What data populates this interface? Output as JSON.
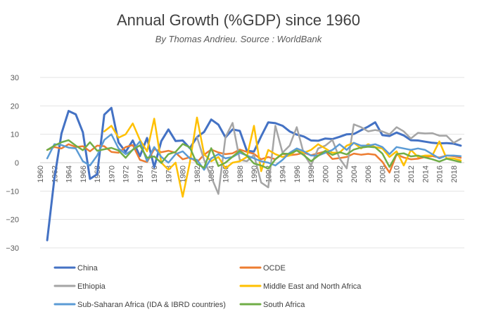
{
  "chart_data": {
    "type": "line",
    "title": "Annual Growth (%GDP) since 1960",
    "subtitle": "By Thomas Andrieu. Source : WorldBank",
    "xlabel": "",
    "ylabel": "",
    "ylim": [
      -30,
      30
    ],
    "yticks": [
      30,
      20,
      10,
      0,
      -10,
      -20,
      -30
    ],
    "xticks": [
      1960,
      1962,
      1964,
      1966,
      1968,
      1970,
      1972,
      1974,
      1976,
      1978,
      1980,
      1982,
      1984,
      1986,
      1988,
      1990,
      1992,
      1994,
      1996,
      1998,
      2000,
      2002,
      2004,
      2006,
      2008,
      2010,
      2012,
      2014,
      2016,
      2018
    ],
    "grid": true,
    "legend_position": "bottom",
    "series": [
      {
        "name": "China",
        "color": "#4472C4",
        "x": [
          1961,
          1962,
          1963,
          1964,
          1965,
          1966,
          1967,
          1968,
          1969,
          1970,
          1971,
          1972,
          1973,
          1974,
          1975,
          1976,
          1977,
          1978,
          1979,
          1980,
          1981,
          1982,
          1983,
          1984,
          1985,
          1986,
          1987,
          1988,
          1989,
          1990,
          1991,
          1992,
          1993,
          1994,
          1995,
          1996,
          1997,
          1998,
          1999,
          2000,
          2001,
          2002,
          2003,
          2004,
          2005,
          2006,
          2007,
          2008,
          2009,
          2010,
          2011,
          2012,
          2013,
          2014,
          2015,
          2016,
          2017,
          2018,
          2019
        ],
        "y": [
          -27.3,
          -5.6,
          10.3,
          18.2,
          17.0,
          10.7,
          -5.7,
          -4.1,
          16.9,
          19.3,
          7.1,
          3.8,
          7.8,
          2.3,
          8.7,
          -1.6,
          7.6,
          11.7,
          7.6,
          7.8,
          5.1,
          9.0,
          10.8,
          15.2,
          13.4,
          8.9,
          11.7,
          11.2,
          4.2,
          3.9,
          9.3,
          14.2,
          13.9,
          13.0,
          11.0,
          9.9,
          9.2,
          7.8,
          7.7,
          8.5,
          8.3,
          9.1,
          10.0,
          10.1,
          11.4,
          12.7,
          14.2,
          9.7,
          9.4,
          10.6,
          9.6,
          7.9,
          7.8,
          7.4,
          7.0,
          6.8,
          6.9,
          6.7,
          6.0
        ]
      },
      {
        "name": "OCDE",
        "color": "#ED7D31",
        "x": [
          1961,
          1962,
          1963,
          1964,
          1965,
          1966,
          1967,
          1968,
          1969,
          1970,
          1971,
          1972,
          1973,
          1974,
          1975,
          1976,
          1977,
          1978,
          1979,
          1980,
          1981,
          1982,
          1983,
          1984,
          1985,
          1986,
          1987,
          1988,
          1989,
          1990,
          1991,
          1992,
          1993,
          1994,
          1995,
          1996,
          1997,
          1998,
          1999,
          2000,
          2001,
          2002,
          2003,
          2004,
          2005,
          2006,
          2007,
          2008,
          2009,
          2010,
          2011,
          2012,
          2013,
          2014,
          2015,
          2016,
          2017,
          2018,
          2019
        ],
        "y": [
          4.5,
          5.5,
          5.0,
          6.5,
          5.5,
          5.8,
          4.0,
          6.0,
          5.8,
          3.8,
          3.5,
          5.5,
          6.2,
          1.0,
          0.2,
          4.8,
          3.7,
          4.2,
          3.5,
          1.2,
          1.9,
          0.2,
          2.8,
          4.6,
          3.6,
          3.0,
          3.3,
          4.6,
          3.8,
          3.1,
          1.2,
          2.0,
          1.2,
          3.1,
          2.6,
          2.9,
          3.5,
          2.6,
          3.3,
          4.0,
          1.3,
          1.6,
          2.0,
          3.2,
          2.8,
          3.1,
          2.8,
          0.3,
          -3.5,
          2.9,
          1.8,
          1.2,
          1.4,
          2.0,
          2.3,
          1.8,
          2.5,
          2.3,
          1.7
        ]
      },
      {
        "name": "Ethiopia",
        "color": "#A5A5A5",
        "x": [
          1982,
          1983,
          1984,
          1985,
          1986,
          1987,
          1988,
          1989,
          1990,
          1991,
          1992,
          1993,
          1994,
          1995,
          1996,
          1997,
          1998,
          1999,
          2000,
          2001,
          2002,
          2003,
          2004,
          2005,
          2006,
          2007,
          2008,
          2009,
          2010,
          2011,
          2012,
          2013,
          2014,
          2015,
          2016,
          2017,
          2018,
          2019
        ],
        "y": [
          9.0,
          1.0,
          -5.0,
          -11.0,
          9.0,
          14.0,
          1.0,
          0.5,
          2.7,
          -7.0,
          -8.7,
          13.0,
          3.5,
          6.0,
          12.5,
          3.0,
          -1.0,
          5.0,
          6.0,
          8.0,
          1.5,
          -2.0,
          13.5,
          12.5,
          11.0,
          11.5,
          11.0,
          10.0,
          12.5,
          11.0,
          8.5,
          10.5,
          10.3,
          10.4,
          9.5,
          9.5,
          7.0,
          8.4
        ]
      },
      {
        "name": "Middle East and North Africa",
        "color": "#FFC000",
        "x": [
          1969,
          1970,
          1971,
          1972,
          1973,
          1974,
          1975,
          1976,
          1977,
          1978,
          1979,
          1980,
          1981,
          1982,
          1983,
          1984,
          1985,
          1986,
          1987,
          1988,
          1989,
          1990,
          1991,
          1992,
          1993,
          1994,
          1995,
          1996,
          1997,
          1998,
          1999,
          2000,
          2001,
          2002,
          2003,
          2004,
          2005,
          2006,
          2007,
          2008,
          2009,
          2010,
          2011,
          2012,
          2013,
          2014,
          2015,
          2016,
          2017,
          2018,
          2019
        ],
        "y": [
          11.0,
          13.0,
          8.8,
          10.0,
          13.8,
          8.0,
          4.0,
          15.5,
          0.0,
          -2.5,
          0.0,
          -12.0,
          0.0,
          15.9,
          3.0,
          0.5,
          2.0,
          -2.0,
          0.0,
          0.5,
          2.0,
          13.0,
          -3.0,
          4.5,
          3.0,
          2.0,
          2.5,
          4.5,
          3.5,
          4.5,
          6.5,
          5.0,
          3.5,
          3.5,
          6.0,
          7.0,
          5.0,
          6.5,
          5.5,
          5.0,
          2.0,
          4.0,
          -1.0,
          4.5,
          2.0,
          2.5,
          2.5,
          7.5,
          1.5,
          1.5,
          0.8
        ]
      },
      {
        "name": "Sub-Saharan Africa (IDA & IBRD countries)",
        "color": "#5B9BD5",
        "x": [
          1961,
          1962,
          1963,
          1964,
          1965,
          1966,
          1967,
          1968,
          1969,
          1970,
          1971,
          1972,
          1973,
          1974,
          1975,
          1976,
          1977,
          1978,
          1979,
          1980,
          1981,
          1982,
          1983,
          1984,
          1985,
          1986,
          1987,
          1988,
          1989,
          1990,
          1991,
          1992,
          1993,
          1994,
          1995,
          1996,
          1997,
          1998,
          1999,
          2000,
          2001,
          2002,
          2003,
          2004,
          2005,
          2006,
          2007,
          2008,
          2009,
          2010,
          2011,
          2012,
          2013,
          2014,
          2015,
          2016,
          2017,
          2018,
          2019
        ],
        "y": [
          1.5,
          6.5,
          6.2,
          5.3,
          5.0,
          0.5,
          -1.0,
          2.5,
          8.0,
          10.0,
          5.0,
          3.0,
          4.5,
          7.5,
          0.5,
          5.5,
          2.0,
          0.0,
          3.0,
          4.0,
          1.5,
          1.0,
          -2.5,
          1.5,
          3.0,
          1.5,
          2.0,
          3.5,
          2.5,
          1.5,
          0.5,
          0.0,
          -1.0,
          1.0,
          3.5,
          5.0,
          4.0,
          2.5,
          2.5,
          3.5,
          4.5,
          6.5,
          4.5,
          7.0,
          6.0,
          6.0,
          6.5,
          5.5,
          3.0,
          5.5,
          5.0,
          4.5,
          5.0,
          4.5,
          3.0,
          1.5,
          2.5,
          2.5,
          2.3
        ]
      },
      {
        "name": "South Africa",
        "color": "#70AD47",
        "x": [
          1961,
          1962,
          1963,
          1964,
          1965,
          1966,
          1967,
          1968,
          1969,
          1970,
          1971,
          1972,
          1973,
          1974,
          1975,
          1976,
          1977,
          1978,
          1979,
          1980,
          1981,
          1982,
          1983,
          1984,
          1985,
          1986,
          1987,
          1988,
          1989,
          1990,
          1991,
          1992,
          1993,
          1994,
          1995,
          1996,
          1997,
          1998,
          1999,
          2000,
          2001,
          2002,
          2003,
          2004,
          2005,
          2006,
          2007,
          2008,
          2009,
          2010,
          2011,
          2012,
          2013,
          2014,
          2015,
          2016,
          2017,
          2018,
          2019
        ],
        "y": [
          4.5,
          6.0,
          7.2,
          7.9,
          6.0,
          4.4,
          7.2,
          4.2,
          4.7,
          5.2,
          4.3,
          1.7,
          4.6,
          6.1,
          1.7,
          2.2,
          -0.1,
          3.0,
          3.8,
          6.6,
          5.4,
          -0.4,
          -1.8,
          5.1,
          -1.2,
          0.0,
          2.1,
          4.2,
          2.4,
          -0.3,
          -1.0,
          -2.1,
          1.2,
          3.2,
          3.1,
          4.3,
          2.6,
          0.5,
          2.4,
          4.2,
          2.7,
          3.7,
          2.9,
          4.6,
          5.3,
          5.6,
          5.4,
          3.2,
          -1.5,
          3.0,
          3.3,
          2.2,
          2.5,
          1.8,
          1.2,
          0.4,
          1.4,
          0.8,
          0.2
        ]
      }
    ]
  }
}
